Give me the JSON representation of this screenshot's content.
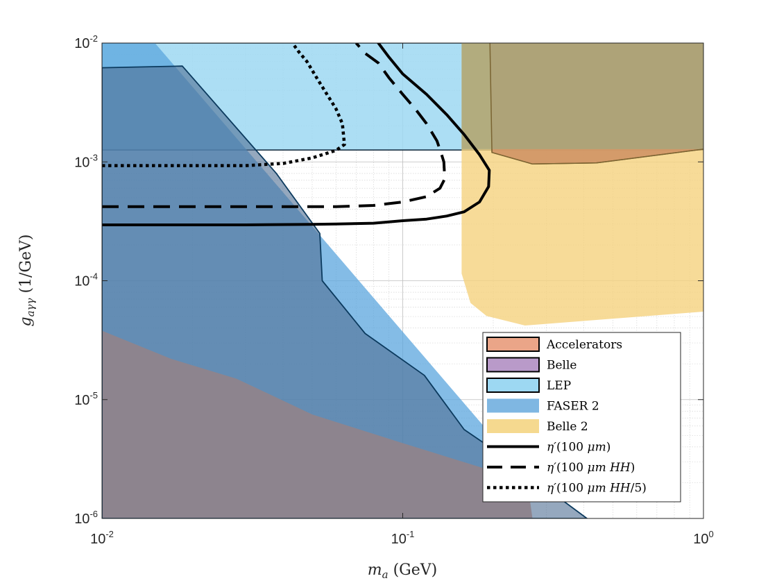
{
  "chart_data": {
    "type": "area",
    "xscale": "log",
    "yscale": "log",
    "xlim": [
      0.01,
      1
    ],
    "ylim": [
      1e-06,
      0.01
    ],
    "grid": true,
    "legend_placement": "bottom-right",
    "xlabel": {
      "sym": "m",
      "sub": "a",
      "unit": " (GeV)"
    },
    "ylabel": {
      "sym": "g",
      "sub": "aγγ",
      "unit": "  (1/GeV)"
    },
    "xticks": [
      {
        "value": 0.01,
        "base": "10",
        "exp": "-2"
      },
      {
        "value": 0.1,
        "base": "10",
        "exp": "-1"
      },
      {
        "value": 1,
        "base": "10",
        "exp": "0"
      }
    ],
    "yticks": [
      {
        "value": 1e-06,
        "base": "10",
        "exp": "-6"
      },
      {
        "value": 1e-05,
        "base": "10",
        "exp": "-5"
      },
      {
        "value": 0.0001,
        "base": "10",
        "exp": "-4"
      },
      {
        "value": 0.001,
        "base": "10",
        "exp": "-3"
      },
      {
        "value": 0.01,
        "base": "10",
        "exp": "-2"
      }
    ],
    "regions": [
      {
        "name": "LEP",
        "fill": "#9dd8f2",
        "opacity": 0.85,
        "stroke": "#0b2338",
        "stroke_width": 1.5,
        "points": [
          [
            0.01,
            0.01
          ],
          [
            0.1,
            0.01
          ],
          [
            1,
            0.01
          ],
          [
            1,
            0.00126
          ],
          [
            0.1,
            0.00126
          ],
          [
            0.01,
            0.00126
          ]
        ]
      },
      {
        "name": "FASER 2",
        "fill": "#5ba6de",
        "opacity": 0.75,
        "stroke": "none",
        "stroke_width": 0,
        "points": [
          [
            0.015,
            0.01
          ],
          [
            0.25,
            2.5e-06
          ],
          [
            0.26,
            1e-06
          ],
          [
            0.01,
            1e-06
          ],
          [
            0.01,
            0.01
          ]
        ]
      },
      {
        "name": "Accelerators",
        "fill": "#eaa588",
        "opacity": 1,
        "stroke": "none",
        "stroke_width": 0,
        "points": [
          [
            0.01,
            3.8e-05
          ],
          [
            0.017,
            2.2e-05
          ],
          [
            0.028,
            1.5e-05
          ],
          [
            0.05,
            7.5e-06
          ],
          [
            0.1,
            4.3e-06
          ],
          [
            0.2,
            2.5e-06
          ],
          [
            0.26,
            2e-06
          ],
          [
            0.27,
            1e-06
          ],
          [
            0.01,
            1e-06
          ]
        ]
      },
      {
        "name": "Dark band",
        "fill": "#4f6e93",
        "opacity": 0.6,
        "stroke": "#0b3a5e",
        "stroke_width": 1.8,
        "points": [
          [
            0.01,
            0.0062
          ],
          [
            0.0185,
            0.0064
          ],
          [
            0.038,
            0.0008
          ],
          [
            0.053,
            0.00025
          ],
          [
            0.054,
            0.0001
          ],
          [
            0.075,
            3.6e-05
          ],
          [
            0.118,
            1.6e-05
          ],
          [
            0.16,
            5.6e-06
          ],
          [
            0.21,
            3.5e-06
          ],
          [
            0.41,
            1e-06
          ],
          [
            0.01,
            1e-06
          ]
        ]
      },
      {
        "name": "Belle 2",
        "fill": "#f5d27e",
        "opacity": 0.8,
        "stroke": "none",
        "stroke_width": 0,
        "points": [
          [
            0.157,
            0.01
          ],
          [
            1,
            0.01
          ],
          [
            1,
            5.5e-05
          ],
          [
            0.255,
            4.2e-05
          ],
          [
            0.19,
            5.05e-05
          ],
          [
            0.168,
            6.5e-05
          ],
          [
            0.157,
            0.000115
          ]
        ]
      },
      {
        "name": "Accelerators",
        "fill": "#cf9465",
        "opacity": 0.9,
        "stroke": "#8a5a2a",
        "stroke_width": 1.5,
        "points": [
          [
            0.195,
            0.01
          ],
          [
            1,
            0.01
          ],
          [
            1,
            0.00128
          ],
          [
            0.44,
            0.00098
          ],
          [
            0.27,
            0.00096
          ],
          [
            0.198,
            0.0012
          ]
        ]
      },
      {
        "name": "Overlap",
        "fill": "#a8a57a",
        "opacity": 0.85,
        "stroke": "none",
        "stroke_width": 0,
        "points": [
          [
            0.157,
            0.01
          ],
          [
            1,
            0.01
          ],
          [
            1,
            0.00128
          ],
          [
            0.157,
            0.00128
          ]
        ]
      },
      {
        "name": "Overlap edge",
        "fill": "none",
        "opacity": 1,
        "stroke": "#7a6432",
        "stroke_width": 1.5,
        "points": [
          [
            0.195,
            0.01
          ],
          [
            0.198,
            0.0012
          ],
          [
            0.27,
            0.00096
          ],
          [
            0.44,
            0.00098
          ],
          [
            1,
            0.00128
          ]
        ]
      }
    ],
    "series": [
      {
        "name": "η′(100 μm)",
        "style": "solid",
        "color": "#000000",
        "width": 4,
        "points": [
          [
            0.01,
            0.000295
          ],
          [
            0.02,
            0.000295
          ],
          [
            0.03,
            0.000295
          ],
          [
            0.05,
            0.000298
          ],
          [
            0.06,
            0.0003
          ],
          [
            0.08,
            0.000305
          ],
          [
            0.1,
            0.00032
          ],
          [
            0.12,
            0.00033
          ],
          [
            0.14,
            0.00035
          ],
          [
            0.16,
            0.00038
          ],
          [
            0.18,
            0.00046
          ],
          [
            0.193,
            0.00062
          ],
          [
            0.194,
            0.00085
          ],
          [
            0.18,
            0.00115
          ],
          [
            0.16,
            0.0017
          ],
          [
            0.14,
            0.0025
          ],
          [
            0.12,
            0.0037
          ],
          [
            0.1,
            0.0055
          ],
          [
            0.09,
            0.0076
          ],
          [
            0.083,
            0.01
          ]
        ]
      },
      {
        "name": "η′(100 μm HH)",
        "style": "dashed",
        "color": "#000000",
        "width": 4,
        "points": [
          [
            0.01,
            0.00042
          ],
          [
            0.02,
            0.00042
          ],
          [
            0.04,
            0.00042
          ],
          [
            0.06,
            0.00042
          ],
          [
            0.08,
            0.00043
          ],
          [
            0.1,
            0.00046
          ],
          [
            0.12,
            0.00051
          ],
          [
            0.133,
            0.0006
          ],
          [
            0.138,
            0.00072
          ],
          [
            0.137,
            0.001
          ],
          [
            0.135,
            0.00113
          ],
          [
            0.13,
            0.0015
          ],
          [
            0.12,
            0.0021
          ],
          [
            0.11,
            0.0028
          ],
          [
            0.1,
            0.0037
          ],
          [
            0.09,
            0.0051
          ],
          [
            0.083,
            0.0068
          ],
          [
            0.075,
            0.0082
          ],
          [
            0.07,
            0.01
          ]
        ]
      },
      {
        "name": "η′(100 μm HH/5)",
        "style": "dotted",
        "color": "#000000",
        "width": 4.5,
        "points": [
          [
            0.01,
            0.00093
          ],
          [
            0.02,
            0.00093
          ],
          [
            0.03,
            0.00093
          ],
          [
            0.04,
            0.00097
          ],
          [
            0.05,
            0.00108
          ],
          [
            0.06,
            0.00125
          ],
          [
            0.064,
            0.0014
          ],
          [
            0.063,
            0.0021
          ],
          [
            0.06,
            0.0028
          ],
          [
            0.056,
            0.0037
          ],
          [
            0.052,
            0.005
          ],
          [
            0.048,
            0.007
          ],
          [
            0.045,
            0.0085
          ],
          [
            0.043,
            0.01
          ]
        ]
      }
    ],
    "legend": [
      {
        "label": "Accelerators",
        "kind": "patch",
        "fill": "#eaa588",
        "stroke": "#000000"
      },
      {
        "label": "Belle",
        "kind": "patch",
        "fill": "#b99ac9",
        "stroke": "#000000"
      },
      {
        "label": "LEP",
        "kind": "patch",
        "fill": "#9dd8f2",
        "stroke": "#000000"
      },
      {
        "label": "FASER 2",
        "kind": "patch",
        "fill": "#7fb7e2",
        "stroke": "none"
      },
      {
        "label": "Belle 2",
        "kind": "patch",
        "fill": "#f5d98f",
        "stroke": "none"
      },
      {
        "label": "η′(100 μm)",
        "kind": "line",
        "style": "solid"
      },
      {
        "label": "η′(100 μm HH)",
        "kind": "line",
        "style": "dashed"
      },
      {
        "label": "η′(100 μm HH/5)",
        "kind": "line",
        "style": "dotted"
      }
    ],
    "legend_text": [
      {
        "parts": [
          {
            "t": "Accelerators",
            "i": false
          }
        ]
      },
      {
        "parts": [
          {
            "t": "Belle",
            "i": false
          }
        ]
      },
      {
        "parts": [
          {
            "t": "LEP",
            "i": false
          }
        ]
      },
      {
        "parts": [
          {
            "t": "FASER 2",
            "i": false
          }
        ]
      },
      {
        "parts": [
          {
            "t": "Belle 2",
            "i": false
          }
        ]
      },
      {
        "parts": [
          {
            "t": "η′",
            "i": true
          },
          {
            "t": "(100 ",
            "i": false
          },
          {
            "t": "μm",
            "i": true
          },
          {
            "t": ")",
            "i": false
          }
        ]
      },
      {
        "parts": [
          {
            "t": "η′",
            "i": true
          },
          {
            "t": "(100 ",
            "i": false
          },
          {
            "t": "μm HH",
            "i": true
          },
          {
            "t": ")",
            "i": false
          }
        ]
      },
      {
        "parts": [
          {
            "t": "η′",
            "i": true
          },
          {
            "t": "(100 ",
            "i": false
          },
          {
            "t": "μm HH",
            "i": true
          },
          {
            "t": "/5)",
            "i": false
          }
        ]
      }
    ]
  }
}
